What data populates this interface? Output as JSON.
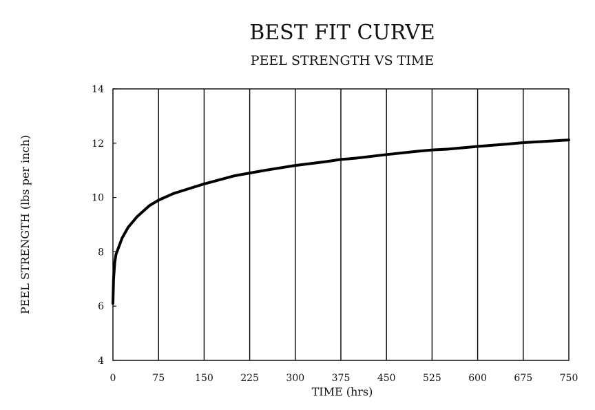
{
  "chart_data": {
    "type": "line",
    "title": "BEST FIT CURVE",
    "subtitle": "PEEL STRENGTH VS TIME",
    "xlabel": "TIME (hrs)",
    "ylabel": "PEEL STRENGTH (lbs per inch)",
    "xlim": [
      0,
      750
    ],
    "ylim": [
      4,
      14
    ],
    "x_ticks": [
      0,
      75,
      150,
      225,
      300,
      375,
      450,
      525,
      600,
      675,
      750
    ],
    "y_ticks": [
      4,
      6,
      8,
      10,
      12,
      14
    ],
    "grid": "vertical",
    "series": [
      {
        "color": "#000000",
        "x": [
          0,
          1,
          3,
          5,
          10,
          15,
          25,
          40,
          60,
          75,
          100,
          150,
          200,
          225,
          250,
          300,
          350,
          375,
          400,
          450,
          500,
          525,
          550,
          600,
          650,
          675,
          700,
          750
        ],
        "y": [
          6.1,
          7.0,
          7.6,
          7.9,
          8.2,
          8.5,
          8.9,
          9.3,
          9.7,
          9.9,
          10.15,
          10.5,
          10.8,
          10.9,
          11.0,
          11.18,
          11.32,
          11.4,
          11.45,
          11.58,
          11.7,
          11.75,
          11.78,
          11.88,
          11.97,
          12.02,
          12.05,
          12.12
        ]
      }
    ]
  }
}
